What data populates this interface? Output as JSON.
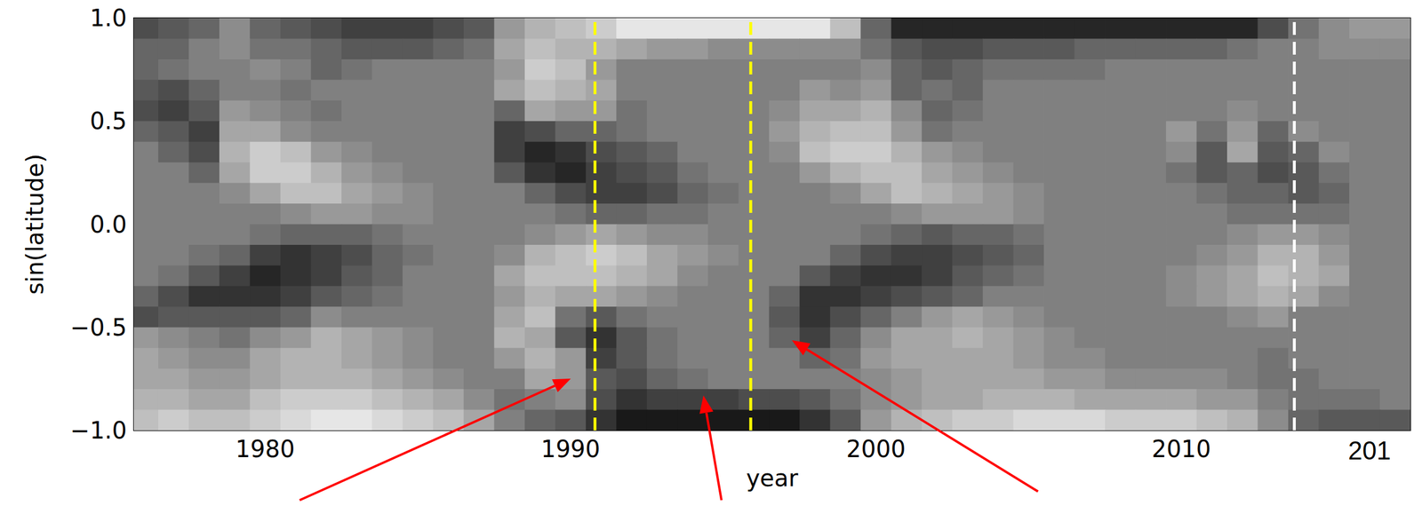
{
  "chart_data": {
    "type": "heatmap",
    "xlabel": "year",
    "ylabel": "sin(latitude)",
    "x": [
      1976,
      1977,
      1978,
      1979,
      1980,
      1981,
      1982,
      1983,
      1984,
      1985,
      1986,
      1987,
      1988,
      1989,
      1990,
      1991,
      1992,
      1993,
      1994,
      1995,
      1996,
      1997,
      1998,
      1999,
      2000,
      2001,
      2002,
      2003,
      2004,
      2005,
      2006,
      2007,
      2008,
      2009,
      2010,
      2011,
      2012,
      2013,
      2014,
      2015,
      2016,
      2017
    ],
    "y": [
      0.95,
      0.85,
      0.75,
      0.65,
      0.55,
      0.45,
      0.35,
      0.25,
      0.15,
      0.05,
      -0.05,
      -0.15,
      -0.25,
      -0.35,
      -0.45,
      -0.55,
      -0.65,
      -0.75,
      -0.85,
      -0.95
    ],
    "cells": [
      [
        -0.4,
        -0.3,
        -0.2,
        0.1,
        -0.2,
        -0.3,
        -0.4,
        -0.5,
        -0.5,
        -0.5,
        -0.4,
        -0.3,
        0.2,
        0.4,
        0.5,
        0.6,
        0.8,
        0.8,
        0.8,
        0.8,
        0.8,
        0.8,
        0.8,
        0.5,
        -0.2,
        -0.7,
        -0.7,
        -0.7,
        -0.7,
        -0.7,
        -0.7,
        -0.7,
        -0.7,
        -0.7,
        -0.7,
        -0.7,
        -0.7,
        -0.4,
        -0.1,
        0.1,
        0.2,
        0.2
      ],
      [
        -0.2,
        -0.2,
        0,
        0.1,
        -0.1,
        -0.1,
        -0.2,
        -0.3,
        -0.3,
        -0.3,
        -0.2,
        -0.1,
        0.3,
        0.5,
        0.4,
        0.4,
        0.3,
        0.2,
        0.2,
        0.1,
        0.1,
        0.1,
        0.1,
        0.1,
        -0.1,
        -0.3,
        -0.4,
        -0.4,
        -0.3,
        -0.3,
        -0.3,
        -0.2,
        -0.2,
        -0.2,
        -0.2,
        -0.2,
        -0.1,
        0,
        0,
        0.1,
        0.1,
        0.1
      ],
      [
        -0.2,
        -0.1,
        0,
        0,
        0.1,
        0,
        -0.2,
        -0.1,
        0,
        0,
        0,
        0,
        0.2,
        0.6,
        0.5,
        0.2,
        0,
        0,
        0,
        0,
        0,
        0,
        0,
        0,
        0.1,
        -0.2,
        -0.3,
        -0.2,
        -0.1,
        -0.1,
        -0.1,
        -0.1,
        0,
        0,
        0,
        0,
        0,
        0,
        0,
        0,
        0,
        0
      ],
      [
        -0.3,
        -0.4,
        -0.2,
        0,
        0,
        -0.1,
        0,
        0,
        0,
        0,
        0,
        0,
        0.3,
        0.5,
        0.4,
        0.3,
        0,
        0,
        0,
        0,
        0,
        0,
        0.2,
        0.1,
        0.2,
        -0.2,
        -0.1,
        -0.2,
        0,
        0,
        0,
        0,
        0,
        0,
        0,
        0,
        0,
        0,
        0,
        0,
        0,
        0
      ],
      [
        -0.4,
        -0.5,
        -0.3,
        0.2,
        0.1,
        0,
        -0.1,
        0,
        0,
        0,
        0,
        0,
        -0.2,
        0.3,
        0.2,
        0.2,
        -0.1,
        0,
        0,
        0,
        0,
        0.1,
        0.3,
        0.3,
        0.4,
        0.1,
        -0.2,
        -0.1,
        0,
        0,
        0,
        0,
        0,
        0,
        0,
        0,
        0.1,
        0,
        0,
        0,
        0,
        0
      ],
      [
        -0.2,
        -0.3,
        -0.5,
        0.3,
        0.3,
        0.1,
        0,
        0,
        0,
        0,
        0,
        0,
        -0.5,
        -0.4,
        -0.2,
        -0.2,
        -0.1,
        0,
        0,
        0,
        0,
        0.2,
        0.4,
        0.5,
        0.5,
        0.2,
        -0.1,
        0,
        0,
        0,
        0,
        0,
        0,
        0,
        0.2,
        -0.1,
        0.2,
        -0.2,
        0.1,
        0,
        0,
        0
      ],
      [
        0,
        -0.2,
        -0.4,
        0.4,
        0.6,
        0.5,
        0.2,
        0.1,
        0,
        0,
        0,
        0,
        -0.5,
        -0.7,
        -0.6,
        -0.4,
        -0.3,
        -0.2,
        0,
        0,
        0,
        0.1,
        0.5,
        0.6,
        0.6,
        0.4,
        0.2,
        0.1,
        0,
        0,
        0,
        0,
        0,
        0,
        0.1,
        -0.3,
        0.3,
        -0.3,
        -0.2,
        0.1,
        0,
        0
      ],
      [
        0,
        0,
        -0.2,
        0.3,
        0.6,
        0.6,
        0.4,
        0.2,
        0.1,
        0,
        0,
        0,
        -0.3,
        -0.6,
        -0.7,
        -0.5,
        -0.4,
        -0.3,
        -0.1,
        0,
        0,
        0,
        0.2,
        0.4,
        0.5,
        0.5,
        0.3,
        0.2,
        0.1,
        0,
        0,
        0,
        0,
        0,
        -0.1,
        -0.3,
        -0.2,
        -0.4,
        -0.3,
        -0.1,
        0,
        0
      ],
      [
        0,
        0,
        0,
        0.1,
        0.3,
        0.5,
        0.5,
        0.3,
        0.2,
        0.1,
        0,
        0,
        0,
        -0.2,
        -0.4,
        -0.5,
        -0.5,
        -0.4,
        -0.2,
        -0.1,
        0,
        0,
        0,
        0.1,
        0.3,
        0.5,
        0.4,
        0.3,
        0.2,
        0.1,
        0,
        0,
        0,
        0,
        0,
        -0.1,
        -0.2,
        -0.2,
        -0.3,
        -0.2,
        0,
        0
      ],
      [
        0,
        0,
        0,
        0,
        0,
        0.1,
        0.2,
        0.2,
        0.1,
        0.1,
        0,
        0,
        0,
        0,
        -0.1,
        -0.2,
        -0.2,
        -0.1,
        -0.1,
        0,
        0,
        0,
        0,
        0,
        0,
        0.1,
        0.2,
        0.2,
        0.2,
        0.1,
        0,
        0,
        0,
        0,
        0,
        0,
        -0.1,
        -0.1,
        -0.1,
        -0.1,
        0,
        0
      ],
      [
        0,
        0,
        0,
        0,
        -0.1,
        -0.2,
        -0.2,
        -0.2,
        -0.1,
        0,
        0,
        0,
        0,
        0.1,
        0.2,
        0.3,
        0.2,
        0.1,
        0.1,
        0,
        0,
        0,
        0,
        0,
        -0.1,
        -0.2,
        -0.3,
        -0.2,
        -0.2,
        -0.1,
        0,
        0,
        0,
        0,
        0,
        0,
        0.1,
        0.2,
        0.2,
        0.1,
        0,
        0
      ],
      [
        0,
        0,
        -0.1,
        -0.2,
        -0.5,
        -0.6,
        -0.5,
        -0.4,
        -0.2,
        -0.1,
        0,
        0,
        0.1,
        0.4,
        0.5,
        0.6,
        0.5,
        0.3,
        0.2,
        0.1,
        0,
        0,
        0,
        -0.2,
        -0.4,
        -0.5,
        -0.5,
        -0.4,
        -0.3,
        -0.2,
        0,
        0,
        0,
        0,
        0,
        0.1,
        0.2,
        0.4,
        0.4,
        0.2,
        0,
        0
      ],
      [
        0,
        -0.1,
        -0.3,
        -0.5,
        -0.7,
        -0.6,
        -0.5,
        -0.3,
        -0.2,
        0,
        0,
        0,
        0.3,
        0.5,
        0.5,
        0.5,
        0.4,
        0.3,
        0.1,
        0,
        0,
        0,
        -0.3,
        -0.5,
        -0.6,
        -0.6,
        -0.5,
        -0.3,
        -0.2,
        -0.1,
        0,
        0,
        0,
        0,
        0.1,
        0.2,
        0.3,
        0.5,
        0.4,
        0.3,
        0,
        0
      ],
      [
        -0.2,
        -0.4,
        -0.6,
        -0.6,
        -0.6,
        -0.5,
        -0.3,
        -0.2,
        -0.1,
        0,
        0,
        0,
        0.2,
        0.4,
        0.3,
        0.3,
        0.2,
        0.1,
        0,
        0,
        0,
        -0.2,
        -0.6,
        -0.6,
        -0.5,
        -0.4,
        -0.3,
        -0.2,
        0,
        0,
        0,
        0,
        0,
        0,
        0.1,
        0.2,
        0.3,
        0.4,
        0.3,
        0.1,
        0,
        0
      ],
      [
        -0.4,
        -0.3,
        -0.3,
        -0.3,
        -0.3,
        -0.2,
        0.1,
        0,
        0,
        0,
        0,
        0,
        0.3,
        0.5,
        -0.1,
        -0.3,
        -0.1,
        0,
        0,
        0,
        0,
        -0.3,
        -0.6,
        -0.4,
        -0.2,
        0,
        0.2,
        0.3,
        0.2,
        0.1,
        0,
        0,
        0,
        0,
        0,
        0,
        0.1,
        0.2,
        0,
        0,
        0,
        0
      ],
      [
        0.2,
        0.1,
        0,
        -0.1,
        0.1,
        0.2,
        0.4,
        0.3,
        0.2,
        0.1,
        0,
        0,
        0.4,
        0.3,
        -0.3,
        -0.6,
        -0.3,
        -0.1,
        0,
        0,
        0,
        -0.2,
        -0.5,
        -0.2,
        0.1,
        0.3,
        0.3,
        0.4,
        0.3,
        0.2,
        0.1,
        0,
        0,
        0,
        0,
        0,
        0,
        0,
        0,
        0,
        0,
        0
      ],
      [
        0.3,
        0.2,
        0.1,
        0.1,
        0.3,
        0.4,
        0.4,
        0.3,
        0.2,
        0.1,
        0,
        0,
        0.2,
        0.4,
        0.2,
        -0.5,
        -0.3,
        -0.1,
        0,
        0,
        0,
        0,
        -0.2,
        -0.1,
        0.2,
        0.3,
        0.3,
        0.3,
        0.3,
        0.2,
        0.1,
        0.1,
        0,
        0,
        0,
        0,
        0,
        -0.1,
        0,
        0,
        0,
        0
      ],
      [
        0.3,
        0.3,
        0.2,
        0.2,
        0.3,
        0.4,
        0.4,
        0.4,
        0.3,
        0.2,
        0.1,
        0,
        0,
        0.3,
        0.2,
        -0.3,
        -0.4,
        -0.2,
        -0.1,
        0,
        0,
        0,
        0,
        0,
        0.1,
        0.2,
        0.3,
        0.3,
        0.3,
        0.3,
        0.2,
        0.2,
        0.1,
        0.1,
        0.1,
        0.1,
        0,
        -0.1,
        -0.1,
        0,
        0,
        0
      ],
      [
        0.4,
        0.4,
        0.3,
        0.3,
        0.5,
        0.6,
        0.6,
        0.6,
        0.5,
        0.4,
        0.3,
        0.1,
        -0.1,
        0,
        0.1,
        -0.4,
        -0.6,
        -0.5,
        -0.5,
        -0.5,
        -0.4,
        -0.4,
        -0.3,
        -0.1,
        0.1,
        0.2,
        0.3,
        0.3,
        0.4,
        0.4,
        0.4,
        0.3,
        0.3,
        0.3,
        0.3,
        0.2,
        0.2,
        0,
        -0.1,
        -0.1,
        -0.1,
        0
      ],
      [
        0.5,
        0.6,
        0.5,
        0.5,
        0.6,
        0.7,
        0.8,
        0.8,
        0.7,
        0.6,
        0.5,
        0.3,
        0,
        -0.2,
        -0.3,
        -0.6,
        -0.8,
        -0.8,
        -0.8,
        -0.8,
        -0.8,
        -0.8,
        -0.6,
        -0.3,
        0.2,
        0.4,
        0.5,
        0.6,
        0.6,
        0.7,
        0.7,
        0.7,
        0.6,
        0.6,
        0.6,
        0.5,
        0.4,
        0.1,
        -0.2,
        -0.3,
        -0.3,
        -0.3
      ]
    ],
    "color_range": [
      -1,
      1
    ],
    "xlim": [
      1975.7,
      2017.5
    ],
    "ylim": [
      -1,
      1
    ],
    "xticks": [
      1980,
      1990,
      2000,
      2010
    ],
    "yticks": [
      {
        "value": -1,
        "label": "−1.0"
      },
      {
        "value": -0.5,
        "label": "−0.5"
      },
      {
        "value": 0,
        "label": "0.0"
      },
      {
        "value": 0.5,
        "label": "0.5"
      },
      {
        "value": 1,
        "label": "1.0"
      }
    ],
    "vlines": [
      {
        "x": 1990.8,
        "color": "#ffff00",
        "line_style": "dashed"
      },
      {
        "x": 1995.9,
        "color": "#ffff00",
        "line_style": "dashed"
      },
      {
        "x": 2013.7,
        "color": "#ffffff",
        "line_style": "dashed"
      }
    ],
    "annotations": [
      {
        "text": "201"
      }
    ]
  }
}
